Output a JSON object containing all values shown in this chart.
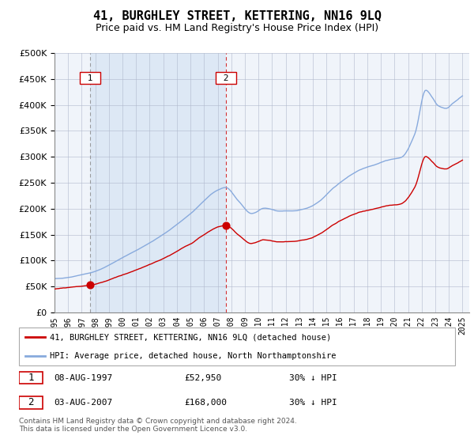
{
  "title": "41, BURGHLEY STREET, KETTERING, NN16 9LQ",
  "subtitle": "Price paid vs. HM Land Registry's House Price Index (HPI)",
  "legend_line1": "41, BURGHLEY STREET, KETTERING, NN16 9LQ (detached house)",
  "legend_line2": "HPI: Average price, detached house, North Northamptonshire",
  "sale1_date": "08-AUG-1997",
  "sale1_price": 52950,
  "sale1_hpi": "30% ↓ HPI",
  "sale2_date": "03-AUG-2007",
  "sale2_price": 168000,
  "sale2_hpi": "30% ↓ HPI",
  "footer": "Contains HM Land Registry data © Crown copyright and database right 2024.\nThis data is licensed under the Open Government Licence v3.0.",
  "red_color": "#cc0000",
  "blue_color": "#88aadd",
  "shade_color": "#dde8f5",
  "background_color": "#ffffff",
  "plot_bg": "#f0f4fa",
  "xmin": 1995.0,
  "xmax": 2025.5,
  "ymin": 0,
  "ymax": 500000,
  "sale1_x": 1997.6,
  "sale2_x": 2007.6
}
